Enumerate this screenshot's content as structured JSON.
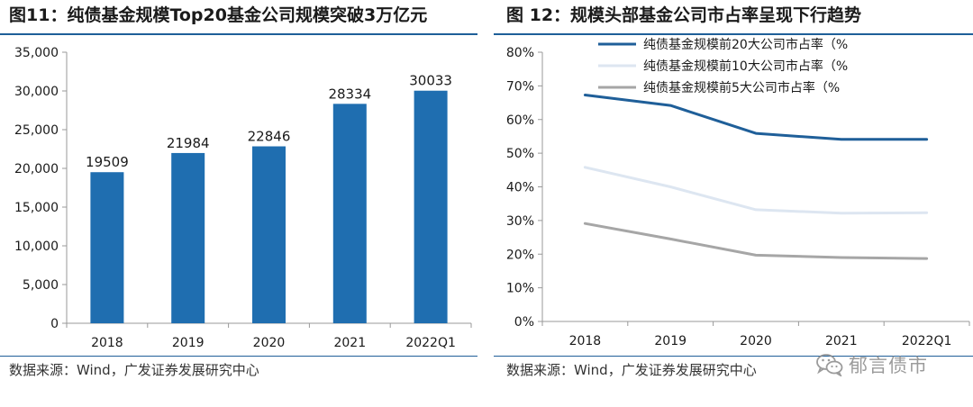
{
  "left": {
    "title": "图11：纯债基金规模Top20基金公司规模突破3万亿元",
    "source": "数据来源：Wind，广发证券发展研究中心",
    "colors": {
      "bar": "#1f6eb0",
      "axis": "#999999"
    }
  },
  "right": {
    "title": "图 12：规模头部基金公司市占率呈现下行趋势",
    "source": "数据来源：Wind，广发证券发展研究中心",
    "colors": {
      "axis": "#999999"
    }
  },
  "watermark": {
    "text": "郁言债市",
    "icon": "wechat-icon"
  },
  "chart_data": [
    {
      "type": "bar",
      "title": "纯债基金规模Top20基金公司规模突破3万亿元",
      "categories": [
        "2018",
        "2019",
        "2020",
        "2021",
        "2022Q1"
      ],
      "values": [
        19509,
        21984,
        22846,
        28334,
        30033
      ],
      "data_labels": [
        "19509",
        "21984",
        "22846",
        "28334",
        "30033"
      ],
      "ylim": [
        0,
        35000
      ],
      "yticks": [
        0,
        5000,
        10000,
        15000,
        20000,
        25000,
        30000,
        35000
      ],
      "ytick_labels": [
        "0",
        "5,000",
        "10,000",
        "15,000",
        "20,000",
        "25,000",
        "30,000",
        "35,000"
      ],
      "xlabel": "",
      "ylabel": "",
      "grid": false
    },
    {
      "type": "line",
      "title": "规模头部基金公司市占率呈现下行趋势",
      "categories": [
        "2018",
        "2019",
        "2020",
        "2021",
        "2022Q1"
      ],
      "series": [
        {
          "name": "纯债基金规模前20大公司市占率（%",
          "values": [
            67.3,
            64.2,
            55.9,
            54.1,
            54.1
          ],
          "color": "#1f5f99"
        },
        {
          "name": "纯债基金规模前10大公司市占率（%",
          "values": [
            45.8,
            40.0,
            33.2,
            32.2,
            32.3
          ],
          "color": "#dde6f1"
        },
        {
          "name": "纯债基金规模前5大公司市占率（%",
          "values": [
            29.1,
            24.5,
            19.7,
            19.0,
            18.7
          ],
          "color": "#a6a6a6"
        }
      ],
      "ylim": [
        0,
        80
      ],
      "yticks": [
        0,
        10,
        20,
        30,
        40,
        50,
        60,
        70,
        80
      ],
      "ytick_labels": [
        "0%",
        "10%",
        "20%",
        "30%",
        "40%",
        "50%",
        "60%",
        "70%",
        "80%"
      ],
      "legend_position": "top",
      "xlabel": "",
      "ylabel": "",
      "grid": false
    }
  ]
}
